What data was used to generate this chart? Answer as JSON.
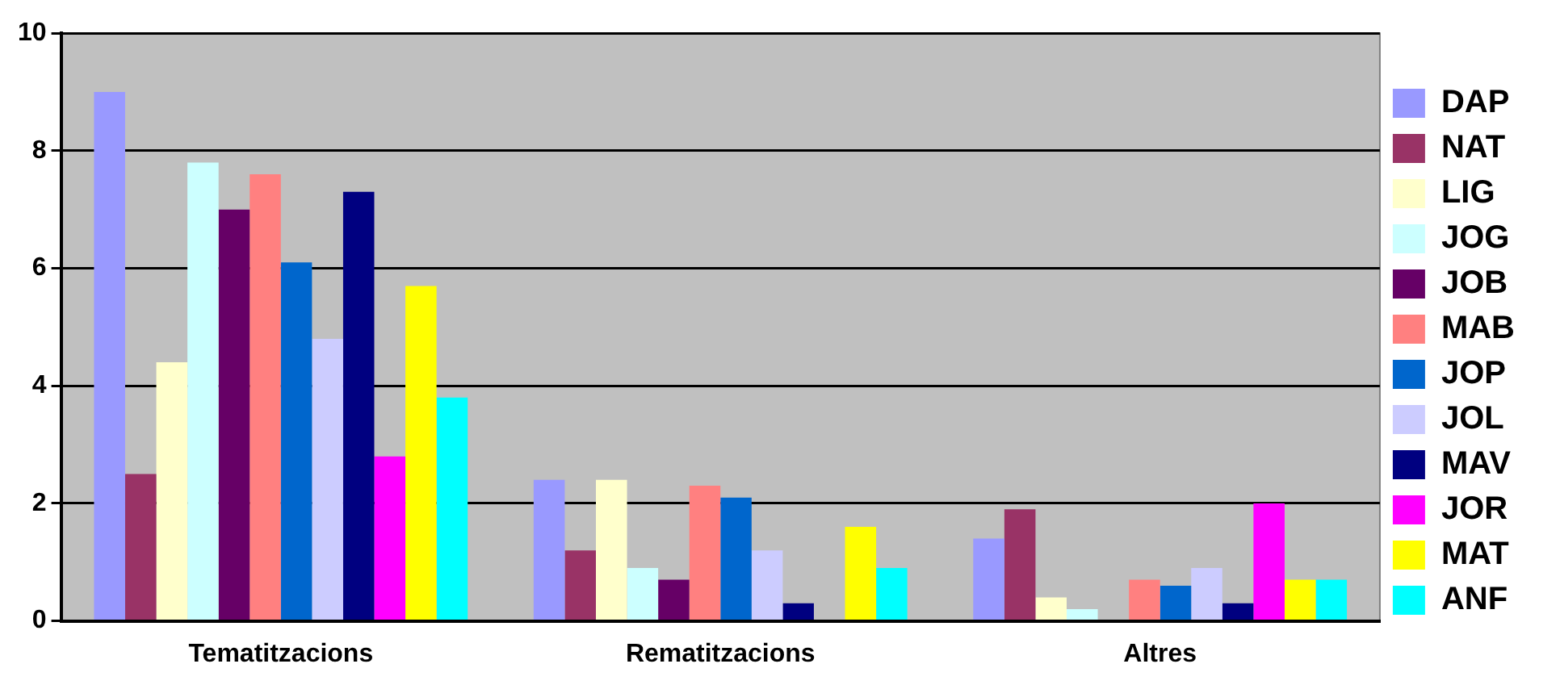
{
  "chart_data": {
    "type": "bar",
    "categories": [
      "Tematitzacions",
      "Rematitzacions",
      "Altres"
    ],
    "series": [
      {
        "name": "DAP",
        "color": "#9999ff",
        "values": [
          9.0,
          2.4,
          1.4
        ]
      },
      {
        "name": "NAT",
        "color": "#993366",
        "values": [
          2.5,
          1.2,
          1.9
        ]
      },
      {
        "name": "LIG",
        "color": "#ffffcc",
        "values": [
          4.4,
          2.4,
          0.4
        ]
      },
      {
        "name": "JOG",
        "color": "#ccffff",
        "values": [
          7.8,
          0.9,
          0.2
        ]
      },
      {
        "name": "JOB",
        "color": "#660066",
        "values": [
          7.0,
          0.7,
          0
        ]
      },
      {
        "name": "MAB",
        "color": "#ff8080",
        "values": [
          7.6,
          2.3,
          0.7
        ]
      },
      {
        "name": "JOP",
        "color": "#0066cc",
        "values": [
          6.1,
          2.1,
          0.6
        ]
      },
      {
        "name": "JOL",
        "color": "#ccccff",
        "values": [
          4.8,
          1.2,
          0.9
        ]
      },
      {
        "name": "MAV",
        "color": "#000080",
        "values": [
          7.3,
          0.3,
          0.3
        ]
      },
      {
        "name": "JOR",
        "color": "#ff00ff",
        "values": [
          2.8,
          0,
          2.0
        ]
      },
      {
        "name": "MAT",
        "color": "#ffff00",
        "values": [
          5.7,
          1.6,
          0.7
        ]
      },
      {
        "name": "ANF",
        "color": "#00ffff",
        "values": [
          3.8,
          0.9,
          0.7
        ]
      }
    ],
    "ylim": [
      0,
      10
    ],
    "yticks": [
      0,
      2,
      4,
      6,
      8,
      10
    ],
    "grid": "y",
    "legend": "right"
  }
}
